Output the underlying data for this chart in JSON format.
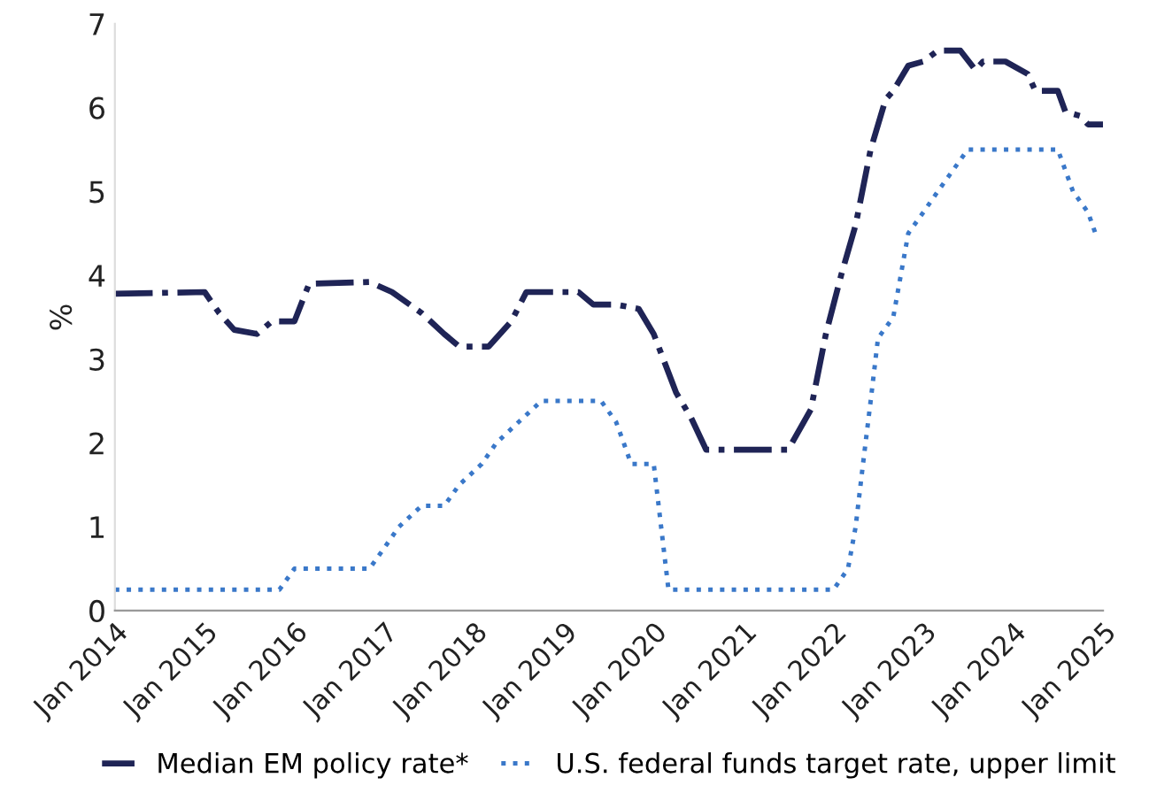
{
  "chart_data": {
    "type": "line",
    "ylabel": "%",
    "xlim": [
      "2014-01",
      "2025-01"
    ],
    "xticks": [
      {
        "value": "2014-01",
        "label": "Jan 2014"
      },
      {
        "value": "2015-01",
        "label": "Jan 2015"
      },
      {
        "value": "2016-01",
        "label": "Jan 2016"
      },
      {
        "value": "2017-01",
        "label": "Jan 2017"
      },
      {
        "value": "2018-01",
        "label": "Jan 2018"
      },
      {
        "value": "2019-01",
        "label": "Jan 2019"
      },
      {
        "value": "2020-01",
        "label": "Jan 2020"
      },
      {
        "value": "2021-01",
        "label": "Jan 2021"
      },
      {
        "value": "2022-01",
        "label": "Jan 2022"
      },
      {
        "value": "2023-01",
        "label": "Jan 2023"
      },
      {
        "value": "2024-01",
        "label": "Jan 2024"
      },
      {
        "value": "2025-01",
        "label": "Jan 2025"
      }
    ],
    "ylim": [
      0,
      7
    ],
    "yticks": [
      0,
      1,
      2,
      3,
      4,
      5,
      6,
      7
    ],
    "grid": false,
    "legend": "bottom",
    "marker": "none",
    "series": [
      {
        "name": "Median EM policy rate*",
        "color": "#1f2456",
        "line_style": "dashdot",
        "x": [
          "2014-01",
          "2015-01",
          "2015-03",
          "2015-05",
          "2015-08",
          "2015-10",
          "2016-01",
          "2016-03",
          "2016-11",
          "2017-02",
          "2017-06",
          "2017-09",
          "2017-11",
          "2018-03",
          "2018-06",
          "2018-08",
          "2019-03",
          "2019-05",
          "2019-08",
          "2019-11",
          "2020-01",
          "2020-04",
          "2020-06",
          "2020-08",
          "2021-07",
          "2021-10",
          "2021-12",
          "2022-02",
          "2022-04",
          "2022-06",
          "2022-08",
          "2022-09",
          "2022-11",
          "2023-01",
          "2023-03",
          "2023-06",
          "2023-08",
          "2023-09",
          "2023-12",
          "2024-03",
          "2024-04",
          "2024-07",
          "2024-08",
          "2024-10",
          "2024-11",
          "2025-01"
        ],
        "values": [
          3.78,
          3.8,
          3.55,
          3.35,
          3.3,
          3.45,
          3.45,
          3.9,
          3.92,
          3.8,
          3.55,
          3.3,
          3.15,
          3.15,
          3.45,
          3.8,
          3.8,
          3.65,
          3.65,
          3.6,
          3.3,
          2.6,
          2.3,
          1.92,
          1.92,
          2.4,
          3.3,
          4.0,
          4.6,
          5.5,
          6.1,
          6.2,
          6.5,
          6.55,
          6.68,
          6.68,
          6.45,
          6.55,
          6.55,
          6.4,
          6.2,
          6.2,
          5.95,
          5.9,
          5.8,
          5.8
        ]
      },
      {
        "name": "U.S. federal funds target rate, upper limit",
        "color": "#3a78c9",
        "line_style": "dotted",
        "x": [
          "2014-01",
          "2015-11",
          "2016-01",
          "2016-11",
          "2017-01",
          "2017-03",
          "2017-06",
          "2017-09",
          "2017-11",
          "2018-02",
          "2018-04",
          "2018-07",
          "2018-10",
          "2019-06",
          "2019-08",
          "2019-09",
          "2019-10",
          "2020-01",
          "2020-03",
          "2022-01",
          "2022-03",
          "2022-04",
          "2022-05",
          "2022-06",
          "2022-07",
          "2022-09",
          "2022-11",
          "2023-01",
          "2023-03",
          "2023-05",
          "2023-07",
          "2024-07",
          "2024-09",
          "2024-11",
          "2024-12"
        ],
        "values": [
          0.25,
          0.25,
          0.5,
          0.5,
          0.75,
          1.0,
          1.25,
          1.25,
          1.5,
          1.75,
          2.0,
          2.25,
          2.5,
          2.5,
          2.25,
          2.0,
          1.75,
          1.75,
          0.25,
          0.25,
          0.5,
          1.0,
          1.75,
          2.5,
          3.25,
          3.5,
          4.5,
          4.75,
          5.0,
          5.25,
          5.5,
          5.5,
          5.0,
          4.75,
          4.5
        ]
      }
    ]
  }
}
